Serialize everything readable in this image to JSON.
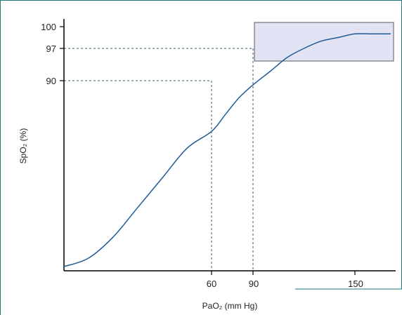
{
  "chart_data": {
    "type": "line",
    "title": "",
    "xlabel": "PaO₂ (mm Hg)",
    "ylabel": "SpO₂ (%)",
    "x_ticks": [
      60,
      90,
      150
    ],
    "y_ticks": [
      90,
      97,
      100
    ],
    "series": [
      {
        "x": [
          0,
          10,
          20,
          30,
          40,
          50,
          60,
          70,
          80,
          90,
          100,
          110,
          120,
          130,
          140,
          150,
          160,
          170
        ],
        "y": [
          2,
          6,
          16,
          30,
          44,
          58,
          66,
          74,
          82,
          88,
          92,
          95,
          97,
          98,
          98.5,
          99,
          99,
          99
        ]
      }
    ],
    "highlight": {
      "x_range": [
        90,
        170
      ],
      "y_range": [
        95,
        101
      ]
    },
    "reference_lines": [
      {
        "x": 60,
        "y": 90
      },
      {
        "x": 90,
        "y": 97
      }
    ],
    "colors": {
      "curve": "#1f5a96",
      "guides": "#2f5d6e",
      "highlight_fill": "#e1e3f5",
      "highlight_stroke": "#5a5a5a",
      "frame": "#1f7a7a"
    }
  }
}
